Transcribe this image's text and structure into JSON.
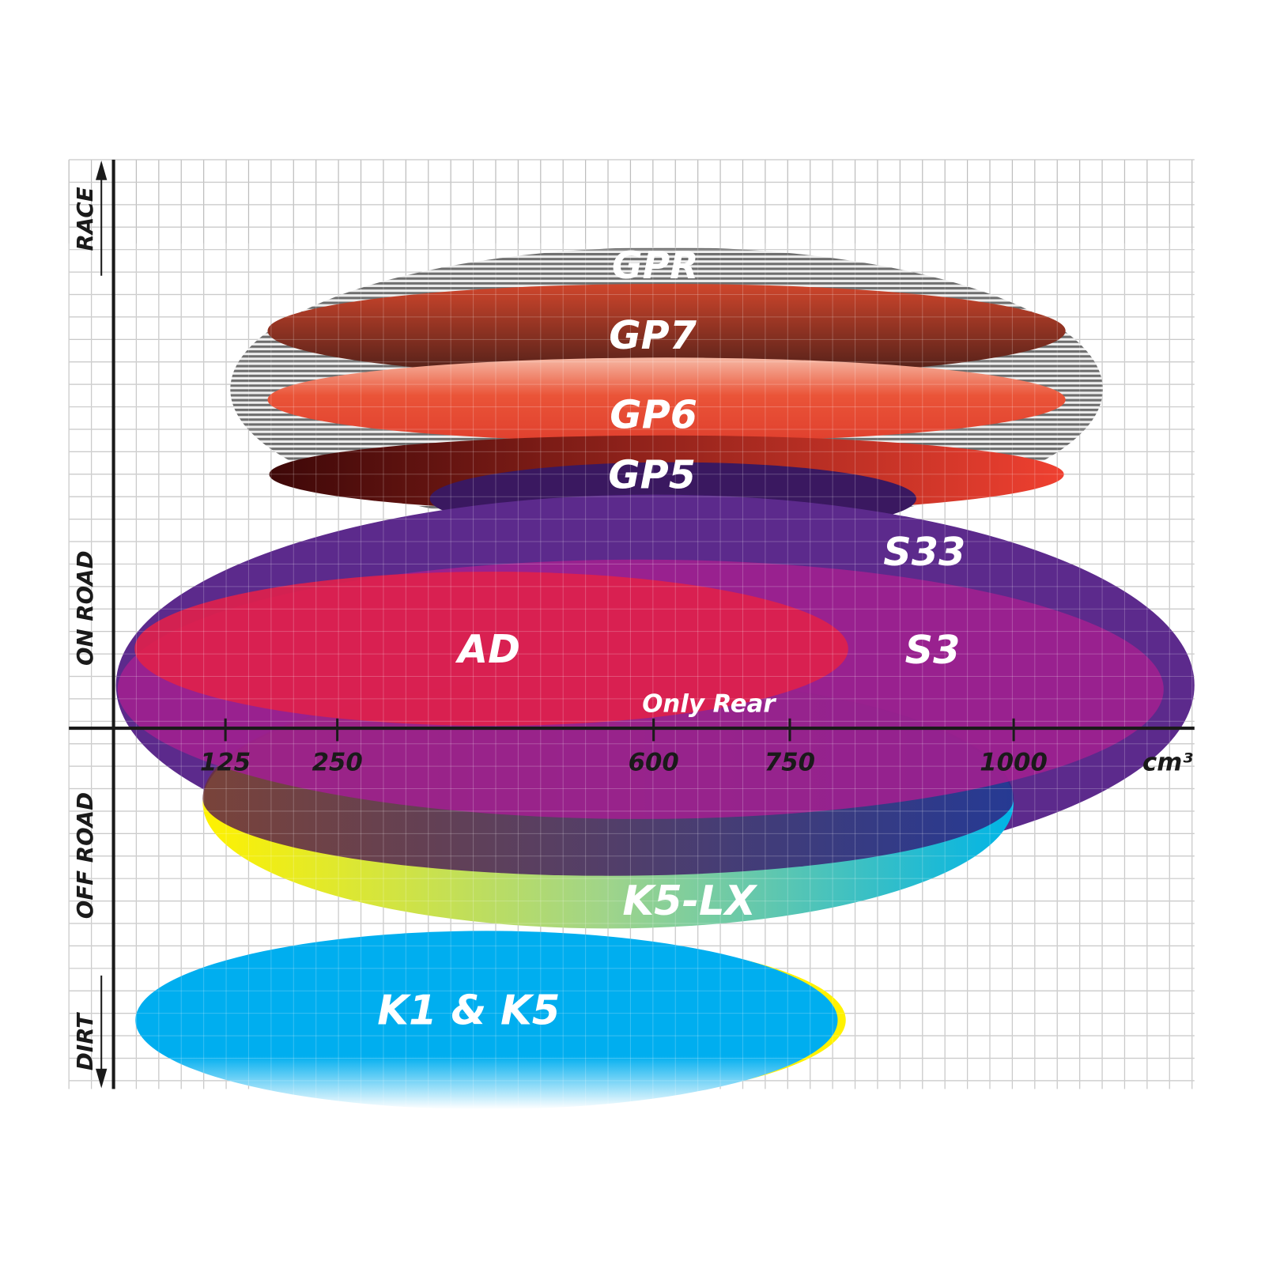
{
  "chart_data": {
    "type": "diagram",
    "xlabel": "cm³",
    "x_ticks": [
      "125",
      "250",
      "600",
      "750",
      "1000"
    ],
    "y_categories": [
      "RACE",
      "ON ROAD",
      "OFF ROAD",
      "DIRT"
    ],
    "grid": true,
    "tyres": [
      {
        "name": "GPR",
        "color": "#9a9a9a"
      },
      {
        "name": "GP7",
        "color": "#b8432a"
      },
      {
        "name": "GP6",
        "color": "#e5452f"
      },
      {
        "name": "GP5",
        "color": "#8a1812"
      },
      {
        "name": "S33",
        "color": "#5c2a8c"
      },
      {
        "name": "S3",
        "color": "#a0208f"
      },
      {
        "name": "AD",
        "color": "#e0204a"
      },
      {
        "name": "Only Rear",
        "color": "#e0204a"
      },
      {
        "name": "K5-LX",
        "color": "#2ec4d8"
      },
      {
        "name": "K1 & K5",
        "color": "#00aeef"
      }
    ]
  }
}
